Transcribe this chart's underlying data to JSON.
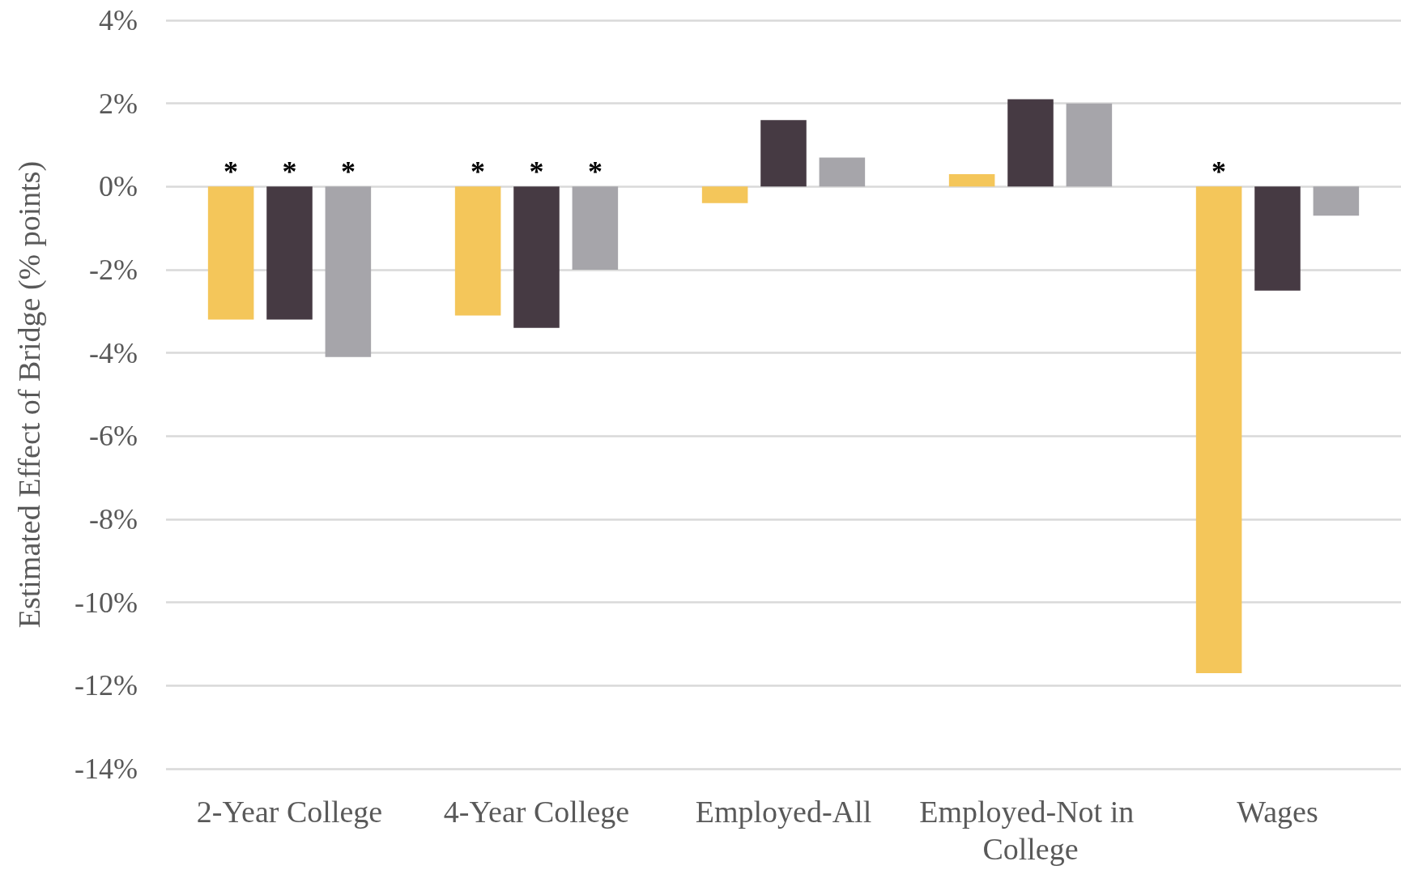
{
  "chart_data": {
    "type": "bar",
    "ylabel": "Estimated Effect of Bridge (% points)",
    "categories": [
      "2-Year College",
      "4-Year College",
      "Employed-All",
      "Employed-Not in College",
      "Wages"
    ],
    "series": [
      {
        "color": "#f4c65a",
        "values": [
          -3.2,
          -3.1,
          -0.4,
          0.3,
          -11.7
        ],
        "value_labels": [
          "*",
          "*",
          null,
          null,
          "*"
        ]
      },
      {
        "color": "#463a43",
        "values": [
          -3.2,
          -3.4,
          1.6,
          2.1,
          -2.5
        ],
        "value_labels": [
          "*",
          "*",
          null,
          null,
          null
        ]
      },
      {
        "color": "#a6a5aa",
        "values": [
          -4.1,
          -2.0,
          0.7,
          2.0,
          -0.7
        ],
        "value_labels": [
          "*",
          "*",
          null,
          null,
          null
        ]
      }
    ],
    "ylim": [
      -14,
      4
    ],
    "yticks": [
      {
        "value": -14,
        "label": "-14%"
      },
      {
        "value": -12,
        "label": "-12%"
      },
      {
        "value": -10,
        "label": "-10%"
      },
      {
        "value": -8,
        "label": "-8%"
      },
      {
        "value": -6,
        "label": "-6%"
      },
      {
        "value": -4,
        "label": "-4%"
      },
      {
        "value": -2,
        "label": "-2%"
      },
      {
        "value": 0,
        "label": "0%"
      },
      {
        "value": 2,
        "label": "2%"
      },
      {
        "value": 4,
        "label": "4%"
      }
    ],
    "grid": true
  }
}
